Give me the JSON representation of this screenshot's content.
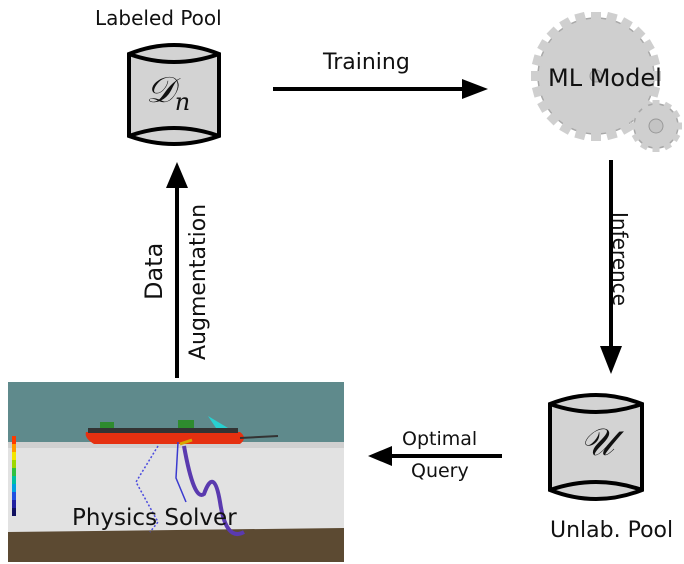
{
  "nodes": {
    "labeled_pool": {
      "label": "Labeled Pool",
      "symbol": "𝒟",
      "subscript": "n"
    },
    "ml_model": {
      "label": "ML Model"
    },
    "unlabeled_pool": {
      "label": "Unlab. Pool",
      "symbol": "𝒰"
    },
    "physics_solver": {
      "label": "Physics Solver"
    }
  },
  "edges": {
    "training": {
      "label": "Training"
    },
    "inference": {
      "label": "Inference"
    },
    "optimal_query": {
      "line1": "Optimal",
      "line2": "Query"
    },
    "data_augmentation": {
      "line1": "Data",
      "line2": "Augmentation"
    }
  },
  "colors": {
    "cylinder_fill": "#d3d3d3",
    "gear_fill": "#cfcfcf",
    "arrow": "#000000",
    "hull_red": "#e53010",
    "sky": "#5f8a8c",
    "wall": "#e2e2e2",
    "floor": "#5c4a32"
  }
}
